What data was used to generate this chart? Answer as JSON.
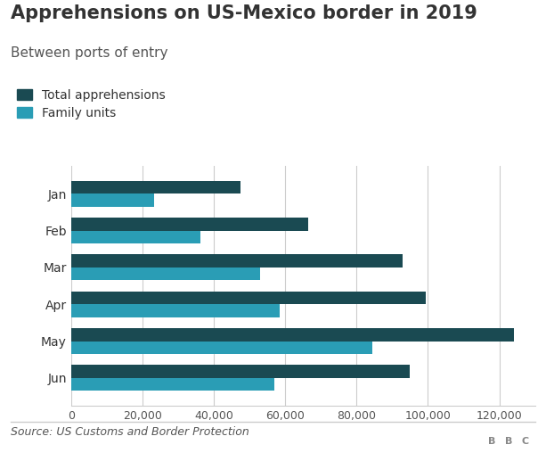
{
  "title": "Apprehensions on US-Mexico border in 2019",
  "subtitle": "Between ports of entry",
  "source": "Source: US Customs and Border Protection",
  "months": [
    "Jan",
    "Feb",
    "Mar",
    "Apr",
    "May",
    "Jun"
  ],
  "total_apprehensions": [
    47486,
    66450,
    92959,
    99304,
    124000,
    94925
  ],
  "family_units": [
    23239,
    36174,
    53077,
    58474,
    84486,
    57035
  ],
  "color_total": "#1a4a52",
  "color_family": "#2a9db5",
  "xlim": [
    0,
    130000
  ],
  "xticks": [
    0,
    20000,
    40000,
    60000,
    80000,
    100000,
    120000
  ],
  "xtick_labels": [
    "0",
    "20,000",
    "40,000",
    "60,000",
    "80,000",
    "100,000",
    "120,000"
  ],
  "title_fontsize": 15,
  "subtitle_fontsize": 11,
  "label_fontsize": 10,
  "tick_fontsize": 9,
  "source_fontsize": 9,
  "legend_fontsize": 10,
  "title_color": "#333333",
  "subtitle_color": "#555555",
  "source_color": "#555555",
  "background_color": "#ffffff",
  "bar_height": 0.35,
  "bbc_logo": "BBC"
}
